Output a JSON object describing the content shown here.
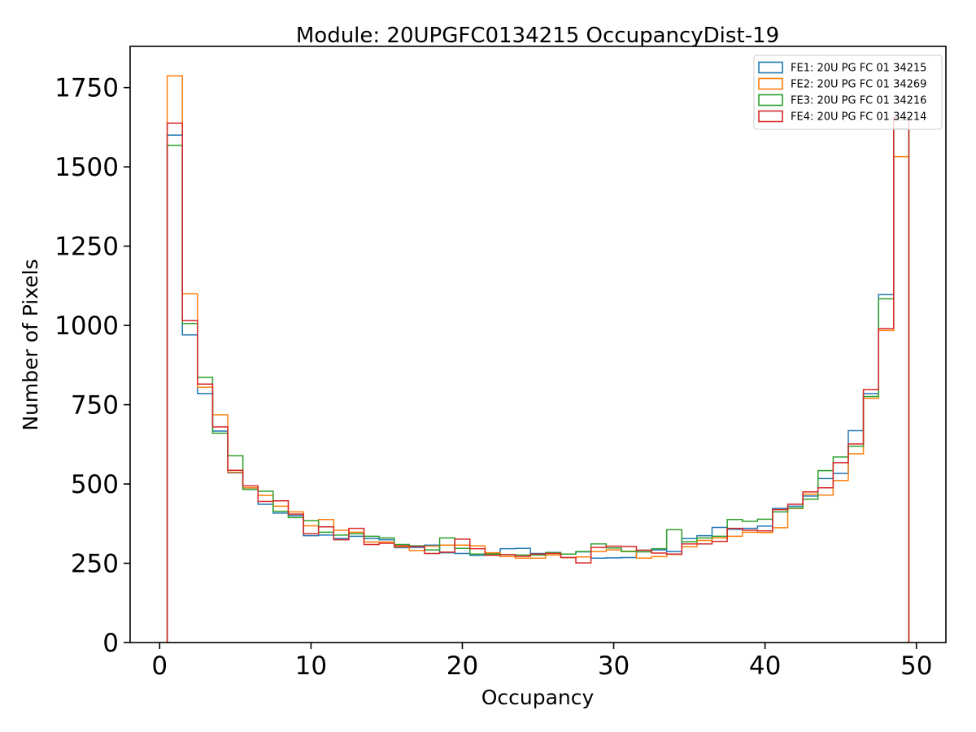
{
  "chart": {
    "title": "Module: 20UPGFC0134215 OccupancyDist-19",
    "xlabel": "Occupancy",
    "ylabel": "Number of Pixels"
  },
  "colors": {
    "fe1": "#1f77b4",
    "fe2": "#ff7f0e",
    "fe3": "#2ca02c",
    "fe4": "#d62728",
    "legend_border": "#cccccc",
    "axis": "#000000"
  },
  "chart_data": {
    "type": "step-histogram",
    "title": "Module: 20UPGFC0134215 OccupancyDist-19",
    "xlabel": "Occupancy",
    "ylabel": "Number of Pixels",
    "grid": false,
    "legend_position": "upper right",
    "bin_start": 0.5,
    "bin_width": 1,
    "bin_count": 49,
    "xlim": [
      -1.95,
      51.95
    ],
    "ylim": [
      0,
      1880
    ],
    "xticks": [
      0,
      10,
      20,
      30,
      40,
      50
    ],
    "yticks": [
      0,
      250,
      500,
      750,
      1000,
      1250,
      1500,
      1750
    ],
    "series": [
      {
        "name": "FE1: 20U PG FC 01 34215",
        "color": "#1f77b4",
        "values": [
          1600,
          970,
          785,
          667,
          535,
          483,
          436,
          408,
          400,
          337,
          339,
          328,
          335,
          328,
          324,
          299,
          300,
          307,
          283,
          281,
          275,
          281,
          296,
          297,
          281,
          284,
          279,
          286,
          266,
          267,
          268,
          291,
          292,
          287,
          328,
          337,
          363,
          357,
          360,
          367,
          423,
          430,
          462,
          517,
          533,
          668,
          785,
          1097,
          1620
        ]
      },
      {
        "name": "FE2: 20U PG FC 01 34269",
        "color": "#ff7f0e",
        "values": [
          1787,
          1100,
          805,
          718,
          537,
          488,
          464,
          430,
          412,
          368,
          388,
          354,
          348,
          317,
          317,
          302,
          290,
          304,
          307,
          307,
          305,
          283,
          271,
          266,
          266,
          276,
          268,
          270,
          287,
          292,
          288,
          266,
          271,
          278,
          302,
          322,
          330,
          335,
          348,
          347,
          362,
          423,
          468,
          465,
          511,
          595,
          770,
          984,
          1532
        ]
      },
      {
        "name": "FE3: 20U PG FC 01 34216",
        "color": "#2ca02c",
        "values": [
          1568,
          1006,
          836,
          660,
          589,
          483,
          477,
          414,
          394,
          384,
          348,
          339,
          343,
          335,
          330,
          309,
          305,
          292,
          330,
          297,
          279,
          279,
          277,
          276,
          276,
          283,
          279,
          287,
          311,
          298,
          287,
          286,
          296,
          356,
          318,
          330,
          335,
          388,
          382,
          389,
          412,
          424,
          452,
          542,
          585,
          619,
          776,
          1084,
          1648
        ]
      },
      {
        "name": "FE4: 20U PG FC 01 34214",
        "color": "#d62728",
        "values": [
          1638,
          1015,
          815,
          680,
          543,
          494,
          445,
          447,
          405,
          343,
          365,
          324,
          360,
          309,
          313,
          305,
          303,
          281,
          285,
          326,
          296,
          275,
          277,
          272,
          279,
          281,
          268,
          251,
          300,
          304,
          303,
          291,
          282,
          279,
          311,
          311,
          319,
          360,
          354,
          352,
          419,
          436,
          475,
          488,
          567,
          626,
          798,
          990,
          1655
        ]
      }
    ]
  }
}
